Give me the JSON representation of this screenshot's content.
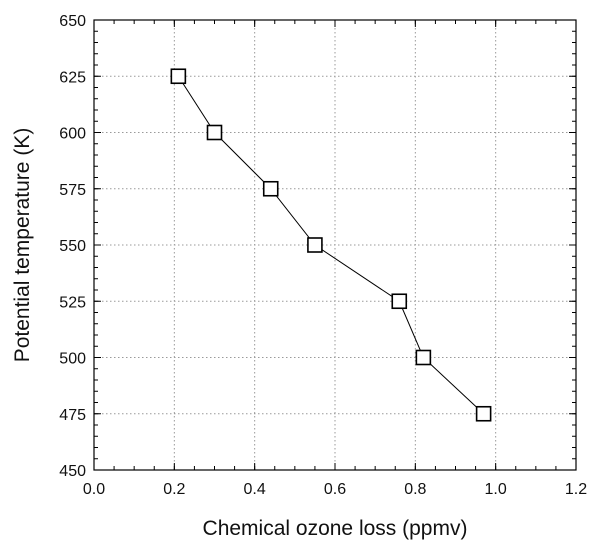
{
  "chart_data": {
    "type": "line",
    "title": "",
    "xlabel": "Chemical ozone loss (ppmv)",
    "ylabel": "Potential temperature (K)",
    "xlim": [
      0.0,
      1.2
    ],
    "ylim": [
      450,
      650
    ],
    "xticks": [
      0.0,
      0.2,
      0.4,
      0.6,
      0.8,
      1.0,
      1.2
    ],
    "xtick_labels": [
      "0.0",
      "0.2",
      "0.4",
      "0.6",
      "0.8",
      "1.0",
      "1.2"
    ],
    "yticks": [
      450,
      475,
      500,
      525,
      550,
      575,
      600,
      625,
      650
    ],
    "ytick_labels": [
      "450",
      "475",
      "500",
      "525",
      "550",
      "575",
      "600",
      "625",
      "650"
    ],
    "grid": true,
    "marker": "open-square",
    "series": [
      {
        "x": [
          0.21,
          0.3,
          0.44,
          0.55,
          0.76,
          0.82,
          0.97
        ],
        "y": [
          625,
          600,
          575,
          550,
          525,
          500,
          475
        ]
      }
    ]
  }
}
